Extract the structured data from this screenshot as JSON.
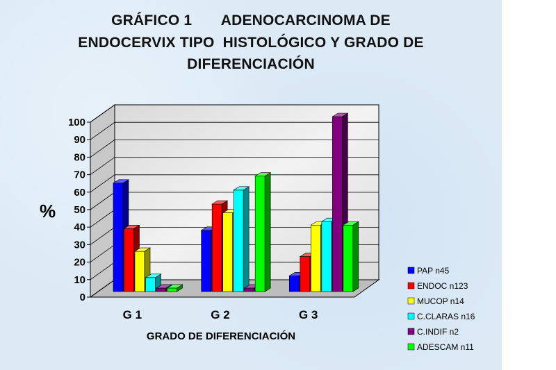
{
  "title": {
    "line1": "GRÁFICO 1       ADENOCARCINOMA DE",
    "line2": "ENDOCERVIX TIPO  HISTOLÓGICO Y GRADO DE",
    "line3": "DIFERENCIACIÓN"
  },
  "chart_data": {
    "type": "bar",
    "title": "GRÁFICO 1 ADENOCARCINOMA DE ENDOCERVIX TIPO HISTOLÓGICO Y GRADO DE DIFERENCIACIÓN",
    "xlabel": "GRADO DE DIFERENCIACIÓN",
    "ylabel": "%",
    "ylim": [
      0,
      100
    ],
    "yticks": [
      0,
      10,
      20,
      30,
      40,
      50,
      60,
      70,
      80,
      90,
      100
    ],
    "categories": [
      "G 1",
      "G 2",
      "G 3"
    ],
    "series": [
      {
        "name": "PAP  n45",
        "color": "#0000ff",
        "values": [
          62,
          35,
          9
        ]
      },
      {
        "name": "ENDOC  n123",
        "color": "#ff0000",
        "values": [
          36,
          50,
          20
        ]
      },
      {
        "name": "MUCOP  n14",
        "color": "#ffff00",
        "values": [
          23,
          45,
          38
        ]
      },
      {
        "name": "C.CLARAS n16",
        "color": "#00ffff",
        "values": [
          8,
          58,
          40
        ]
      },
      {
        "name": "C.INDIF  n2",
        "color": "#800080",
        "values": [
          2,
          2,
          100
        ]
      },
      {
        "name": "ADESCAM  n11",
        "color": "#00ff00",
        "values": [
          2,
          66,
          38
        ]
      }
    ],
    "grid": true,
    "legend_position": "right",
    "projection": "3d"
  }
}
